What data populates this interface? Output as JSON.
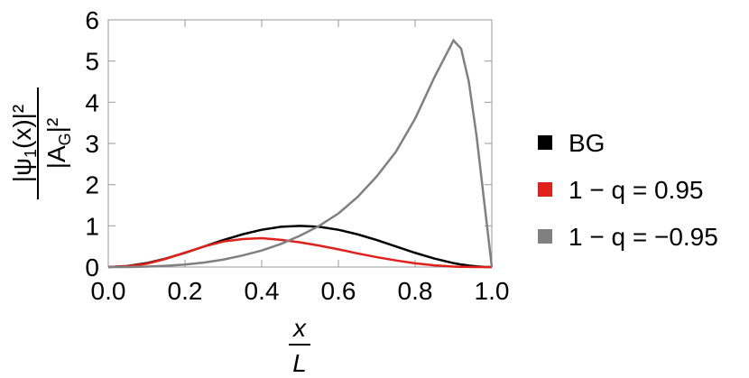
{
  "chart_data": {
    "type": "line",
    "ylabel": {
      "numerator": [
        "|ψ",
        "1",
        "(x)|²"
      ],
      "denominator": [
        "|A",
        "G",
        "|²"
      ]
    },
    "xlabel": {
      "numerator": "x",
      "denominator": "L"
    },
    "x": [
      0,
      0.05,
      0.1,
      0.15,
      0.2,
      0.25,
      0.3,
      0.35,
      0.4,
      0.45,
      0.5,
      0.55,
      0.6,
      0.65,
      0.7,
      0.75,
      0.8,
      0.85,
      0.9,
      0.92,
      0.94,
      0.96,
      0.98,
      1
    ],
    "series": [
      {
        "name": "BG",
        "color": "#000000",
        "values": [
          0,
          0.024,
          0.095,
          0.206,
          0.345,
          0.5,
          0.655,
          0.794,
          0.905,
          0.976,
          1,
          0.976,
          0.905,
          0.794,
          0.655,
          0.5,
          0.345,
          0.206,
          0.095,
          0.062,
          0.035,
          0.016,
          0.004,
          0
        ]
      },
      {
        "name": "1 − q = 0.95",
        "color": "#e0201b",
        "values": [
          0,
          0.02,
          0.08,
          0.2,
          0.35,
          0.5,
          0.62,
          0.68,
          0.7,
          0.66,
          0.6,
          0.52,
          0.43,
          0.33,
          0.24,
          0.16,
          0.09,
          0.04,
          0.01,
          0.005,
          0.003,
          0.001,
          0,
          0
        ]
      },
      {
        "name": "1 − q = −0.95",
        "color": "#808080",
        "values": [
          0,
          0.001,
          0.01,
          0.03,
          0.06,
          0.11,
          0.18,
          0.28,
          0.4,
          0.56,
          0.76,
          1.0,
          1.3,
          1.7,
          2.2,
          2.8,
          3.6,
          4.6,
          5.5,
          5.3,
          4.5,
          3.2,
          1.6,
          0
        ]
      }
    ],
    "xlim": [
      0,
      1
    ],
    "ylim": [
      0,
      6
    ],
    "xticks": [
      {
        "value": 0,
        "label": "0.0"
      },
      0.2,
      0.4,
      0.6,
      0.8,
      {
        "value": 1,
        "label": "1.0"
      }
    ],
    "yticks": [
      0,
      1,
      2,
      3,
      4,
      5,
      6
    ],
    "legend": "right"
  }
}
